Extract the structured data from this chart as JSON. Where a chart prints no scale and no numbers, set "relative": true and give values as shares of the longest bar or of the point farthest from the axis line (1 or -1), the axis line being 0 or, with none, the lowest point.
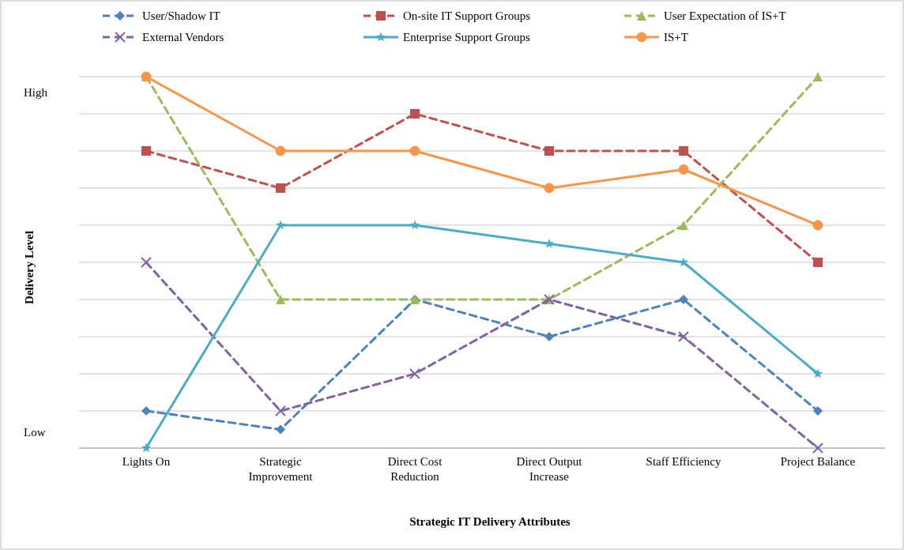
{
  "chart_data": {
    "type": "line",
    "xlabel": "Strategic IT Delivery Attributes",
    "ylabel": "Delivery Level",
    "relative": true,
    "grid": "y",
    "legend": "top",
    "categories": [
      "Lights On",
      "Strategic\nImprovement",
      "Direct Cost\nReduction",
      "Direct Output\nIncrease",
      "Staff Efficiency",
      "Project Balance"
    ],
    "annotations": [
      "High",
      "Low"
    ],
    "series": [
      {
        "name": "User/Shadow IT",
        "color": "#4f81bd",
        "marker": "diamond",
        "line_style": "dashed",
        "values": [
          0.1,
          0.05,
          0.4,
          0.3,
          0.4,
          0.1
        ]
      },
      {
        "name": "On-site IT Support Groups",
        "color": "#c0504d",
        "marker": "square",
        "line_style": "dashed",
        "values": [
          0.8,
          0.7,
          0.9,
          0.8,
          0.8,
          0.5
        ]
      },
      {
        "name": "User Expectation of IS+T",
        "color": "#9bbb59",
        "marker": "triangle",
        "line_style": "dashed",
        "values": [
          1,
          0.4,
          0.4,
          0.4,
          0.6,
          1
        ]
      },
      {
        "name": "External Vendors",
        "color": "#8064a2",
        "marker": "cross",
        "line_style": "dashed",
        "values": [
          0.5,
          0.1,
          0.2,
          0.4,
          0.3,
          0
        ]
      },
      {
        "name": "Enterprise Support Groups",
        "color": "#4bacc6",
        "marker": "star",
        "line_style": "solid",
        "values": [
          0,
          0.6,
          0.6,
          0.55,
          0.5,
          0.2
        ]
      },
      {
        "name": "IS+T",
        "color": "#f79646",
        "marker": "circle",
        "line_style": "solid",
        "values": [
          1,
          0.8,
          0.8,
          0.7,
          0.75,
          0.6
        ]
      }
    ]
  }
}
